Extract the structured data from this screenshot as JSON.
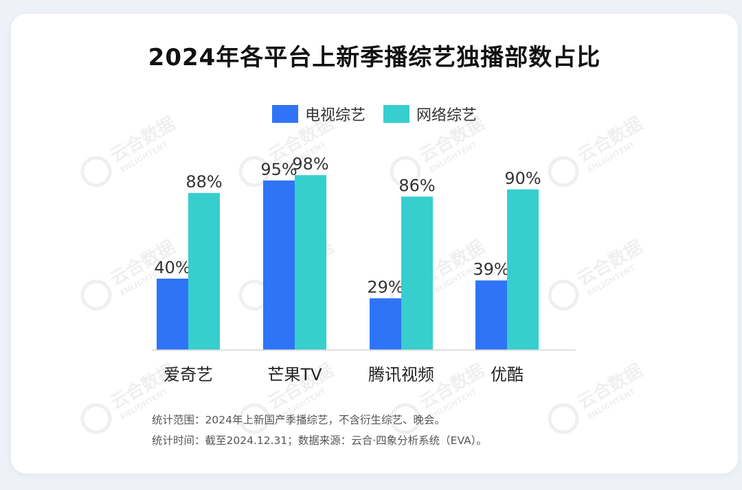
{
  "chart_data": {
    "type": "bar",
    "title": "2024年各平台上新季播综艺独播部数占比",
    "categories": [
      "爱奇艺",
      "芒果TV",
      "腾讯视频",
      "优酷"
    ],
    "series": [
      {
        "name": "电视综艺",
        "values": [
          40,
          95,
          29,
          39
        ],
        "color": "#2f74f7"
      },
      {
        "name": "网络综艺",
        "values": [
          88,
          98,
          86,
          90
        ],
        "color": "#36cfce"
      }
    ],
    "value_suffix": "%",
    "ylim": [
      0,
      100
    ],
    "legend": "top",
    "grid": false
  },
  "footnotes": {
    "scope": "统计范围：2024年上新国产季播综艺，不含衍生综艺、晚会。",
    "time_source": "统计时间：截至2024.12.31；数据来源：云合·四象分析系统（EVA）。"
  },
  "watermark": {
    "text_cn": "云合数据",
    "text_en": "ENLIGHTENT"
  }
}
